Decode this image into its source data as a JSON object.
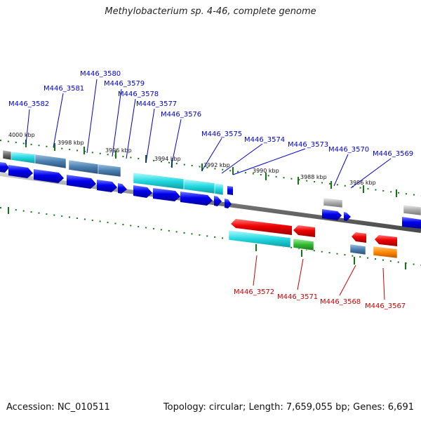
{
  "title": "Methylobacterium sp. 4-46, complete genome",
  "footer": {
    "accession": "Accession: NC_010511",
    "summary": "Topology: circular; Length: 7,659,055 bp; Genes: 6,691"
  },
  "scale_labels": [
    "4000 kbp",
    "3998 kbp",
    "3996 kbp",
    "3994 kbp",
    "3992 kbp",
    "3990 kbp",
    "3988 kbp",
    "3986 kbp"
  ],
  "genes_top": [
    "M446_3582",
    "M446_3581",
    "M446_3580",
    "M446_3579",
    "M446_3578",
    "M446_3577",
    "M446_3576",
    "M446_3575",
    "M446_3574",
    "M446_3573",
    "M446_3570",
    "M446_3569"
  ],
  "genes_bottom": [
    "M446_3572",
    "M446_3571",
    "M446_3568",
    "M446_3567"
  ],
  "colors": {
    "forward_label": "#0000cc",
    "reverse_label": "#cc0000",
    "cds_forward": "#0000ee",
    "cds_reverse": "#ee0000",
    "cyan": "#22d8e0",
    "steelblue": "#4a7fb0",
    "green": "#33bb33",
    "orange": "#ff8800",
    "gray": "#aaaaaa",
    "tick": "#117711",
    "backbone": "#777777"
  }
}
